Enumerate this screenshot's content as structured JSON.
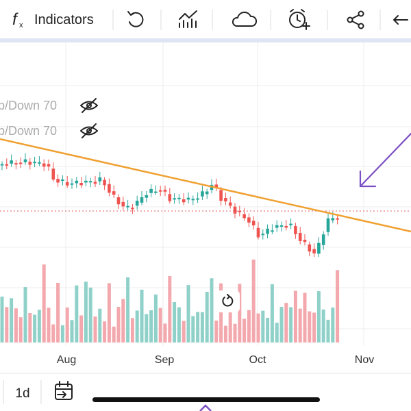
{
  "toolbar": {
    "indicators": "Indicators"
  },
  "chart": {
    "legend": [
      "p/Down 70",
      "p/Down 70"
    ],
    "x_labels": [
      "Aug",
      "Sep",
      "Oct",
      "Nov"
    ]
  },
  "bottom_bar": {
    "interval": "1d"
  }
}
